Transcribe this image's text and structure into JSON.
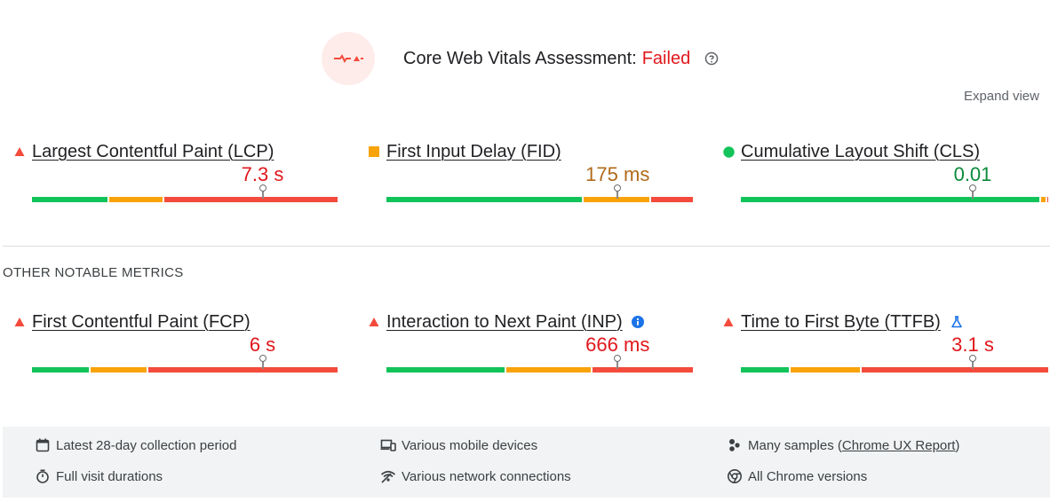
{
  "header": {
    "title": "Core Web Vitals Assessment:",
    "status": "Failed",
    "help_icon": "help-circle-icon",
    "expand_label": "Expand view"
  },
  "core_metrics": [
    {
      "name": "Largest Contentful Paint (LCP)",
      "value": "7.3 s",
      "rating": "poor",
      "icon": "red-triangle-icon",
      "marker": 0.75,
      "distribution": {
        "good": 0.25,
        "needs_improvement": 0.18,
        "poor": 0.57
      }
    },
    {
      "name": "First Input Delay (FID)",
      "value": "175 ms",
      "rating": "needs-improvement",
      "icon": "orange-square-icon",
      "marker": 0.75,
      "distribution": {
        "good": 0.64,
        "needs_improvement": 0.22,
        "poor": 0.14
      }
    },
    {
      "name": "Cumulative Layout Shift (CLS)",
      "value": "0.01",
      "rating": "good",
      "icon": "green-circle-icon",
      "marker": 0.75,
      "distribution": {
        "good": 0.97,
        "needs_improvement": 0.02,
        "poor": 0.01
      }
    }
  ],
  "other_label": "OTHER NOTABLE METRICS",
  "other_metrics": [
    {
      "name": "First Contentful Paint (FCP)",
      "value": "6 s",
      "rating": "poor",
      "icon": "red-triangle-icon",
      "marker": 0.75,
      "distribution": {
        "good": 0.19,
        "needs_improvement": 0.19,
        "poor": 0.62
      }
    },
    {
      "name": "Interaction to Next Paint (INP)",
      "value": "666 ms",
      "rating": "poor",
      "icon": "red-triangle-icon",
      "extra_icon": "info-icon",
      "marker": 0.75,
      "distribution": {
        "good": 0.39,
        "needs_improvement": 0.28,
        "poor": 0.33
      }
    },
    {
      "name": "Time to First Byte (TTFB)",
      "value": "3.1 s",
      "rating": "poor",
      "icon": "red-triangle-icon",
      "extra_icon": "flask-icon",
      "marker": 0.75,
      "distribution": {
        "good": 0.16,
        "needs_improvement": 0.23,
        "poor": 0.61
      }
    }
  ],
  "footer": {
    "items": [
      {
        "icon": "calendar-icon",
        "label": "Latest 28-day collection period"
      },
      {
        "icon": "devices-icon",
        "label": "Various mobile devices"
      },
      {
        "icon": "samples-icon",
        "label": "Many samples (",
        "link": "Chrome UX Report",
        "suffix": ")"
      },
      {
        "icon": "timer-icon",
        "label": "Full visit durations"
      },
      {
        "icon": "network-icon",
        "label": "Various network connections"
      },
      {
        "icon": "chrome-icon",
        "label": "All Chrome versions"
      }
    ]
  },
  "colors": {
    "good": "#12c35a",
    "needs_improvement": "#f8a30a",
    "poor": "#f44b3c",
    "failed": "#e0171c"
  }
}
